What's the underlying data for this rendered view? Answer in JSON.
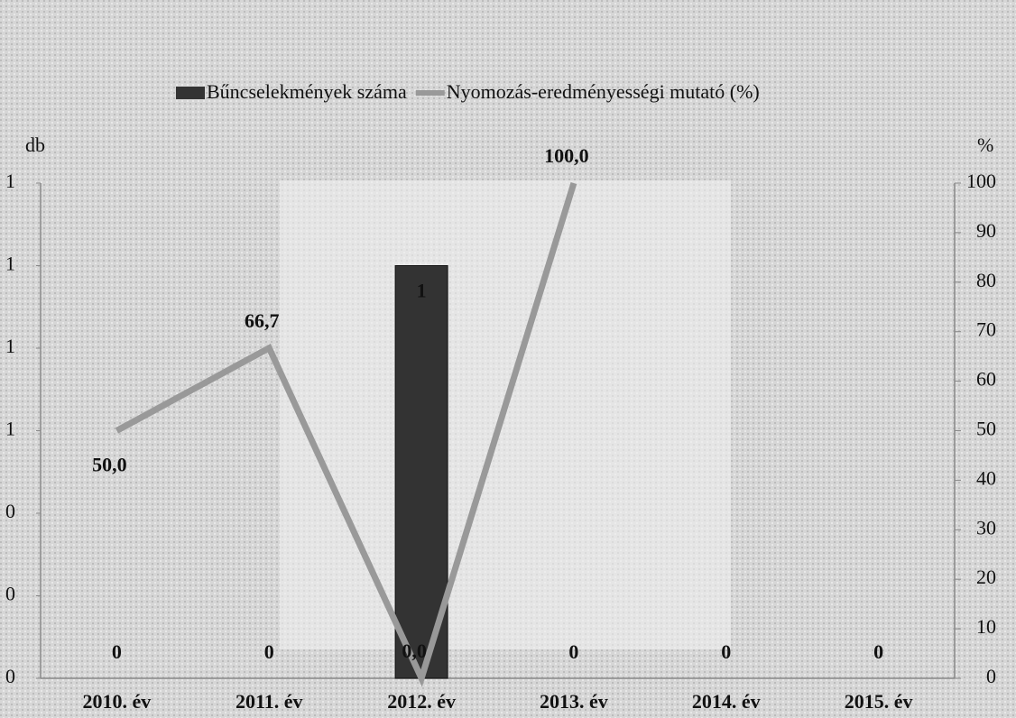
{
  "chart_data": {
    "type": "bar",
    "categories": [
      "2010. év",
      "2011. év",
      "2012. év",
      "2013. év",
      "2014. év",
      "2015. év"
    ],
    "series": [
      {
        "name": "Bűncselekmények száma",
        "type": "bar",
        "color": "#333333",
        "values": [
          0,
          0,
          1,
          0,
          0,
          0
        ]
      },
      {
        "name": "Nyomozás-eredményességi mutató (%)",
        "type": "line",
        "color": "#999999",
        "axis": "y2",
        "values": [
          50.0,
          66.7,
          0.0,
          100.0,
          null,
          null
        ],
        "value_labels": [
          "50,0",
          "66,7",
          "0,0",
          "100,0",
          null,
          null
        ]
      }
    ],
    "y_label": "db",
    "y2_label": "%",
    "ylim": [
      0,
      1.2
    ],
    "yticks": [
      0,
      {
        "value": 0.2,
        "label": "0"
      },
      {
        "value": 0.4,
        "label": "0"
      },
      {
        "value": 0.6,
        "label": "1"
      },
      {
        "value": 0.8,
        "label": "1"
      },
      {
        "value": 1,
        "label": "1"
      },
      {
        "value": 1.2,
        "label": "1"
      }
    ],
    "y2lim": [
      0,
      100
    ],
    "y2ticks": [
      0,
      10,
      20,
      30,
      40,
      50,
      60,
      70,
      80,
      90,
      100
    ],
    "legend": "top"
  }
}
